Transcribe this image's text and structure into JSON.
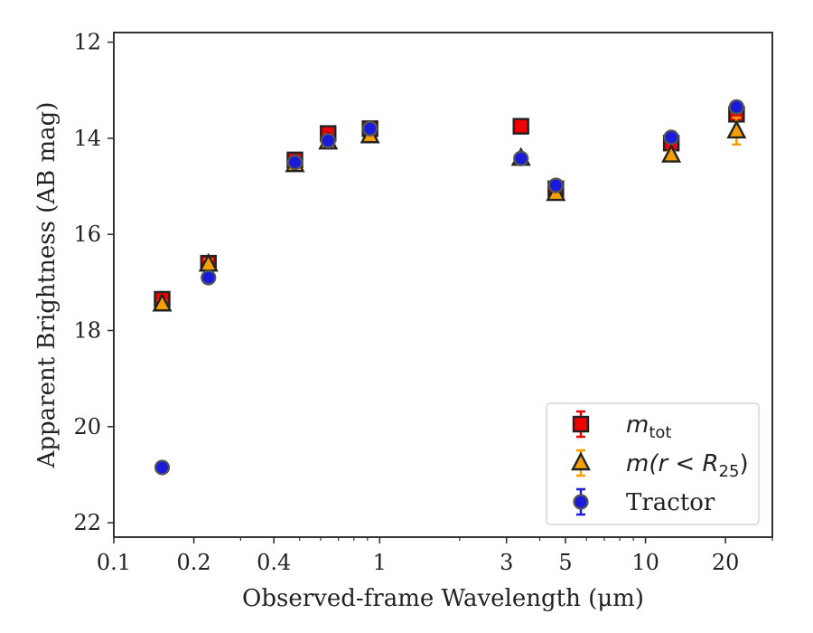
{
  "chart_data": {
    "type": "scatter",
    "title": "",
    "xlabel": "Observed-frame Wavelength (μm)",
    "ylabel": "Apparent Brightness (AB mag)",
    "xscale": "log",
    "xlim": [
      0.1,
      30
    ],
    "ylim": [
      22.3,
      11.8
    ],
    "y_inverted": true,
    "grid": false,
    "legend_position": "lower-right",
    "x_ticks": [
      {
        "value": 0.1,
        "label": "0.1"
      },
      {
        "value": 0.2,
        "label": "0.2"
      },
      {
        "value": 0.4,
        "label": "0.4"
      },
      {
        "value": 1,
        "label": "1"
      },
      {
        "value": 3,
        "label": "3"
      },
      {
        "value": 5,
        "label": "5"
      },
      {
        "value": 10,
        "label": "10"
      },
      {
        "value": 20,
        "label": "20"
      }
    ],
    "y_ticks": [
      {
        "value": 12,
        "label": "12"
      },
      {
        "value": 14,
        "label": "14"
      },
      {
        "value": 16,
        "label": "16"
      },
      {
        "value": 18,
        "label": "18"
      },
      {
        "value": 20,
        "label": "20"
      },
      {
        "value": 22,
        "label": "22"
      }
    ],
    "series": [
      {
        "legend_base": "m",
        "legend_sub": "tot",
        "legend_suffix": "",
        "marker": "square",
        "face": "#ee0000",
        "edge": "#222222",
        "errcolor": "#ee0000",
        "points": [
          {
            "x": 0.152,
            "y": 17.35,
            "err": 0.08
          },
          {
            "x": 0.227,
            "y": 16.6,
            "err": 0.1
          },
          {
            "x": 0.48,
            "y": 14.45,
            "err": 0.05
          },
          {
            "x": 0.64,
            "y": 13.9,
            "err": 0.05
          },
          {
            "x": 0.92,
            "y": 13.8,
            "err": 0.05
          },
          {
            "x": 3.4,
            "y": 13.75,
            "err": 0.04
          },
          {
            "x": 4.6,
            "y": 15.05,
            "err": 0.05
          },
          {
            "x": 12.5,
            "y": 14.1,
            "err": 0.07
          },
          {
            "x": 22.0,
            "y": 13.5,
            "err": 0.12
          }
        ]
      },
      {
        "legend_base": "m(r < R",
        "legend_sub": "25",
        "legend_suffix": ")",
        "marker": "triangle",
        "face": "#f5a000",
        "edge": "#222222",
        "errcolor": "#f5a000",
        "points": [
          {
            "x": 0.152,
            "y": 17.45,
            "err": 0.08
          },
          {
            "x": 0.227,
            "y": 16.62,
            "err": 0.1
          },
          {
            "x": 0.48,
            "y": 14.55,
            "err": 0.05
          },
          {
            "x": 0.64,
            "y": 14.08,
            "err": 0.05
          },
          {
            "x": 0.92,
            "y": 13.95,
            "err": 0.05
          },
          {
            "x": 3.4,
            "y": 14.42,
            "err": 0.05
          },
          {
            "x": 4.6,
            "y": 15.15,
            "err": 0.06
          },
          {
            "x": 12.5,
            "y": 14.35,
            "err": 0.08
          },
          {
            "x": 22.0,
            "y": 13.85,
            "err": 0.28
          }
        ]
      },
      {
        "legend_base": "Tractor",
        "legend_sub": "",
        "legend_suffix": "",
        "marker": "circle",
        "face": "#1a1adb",
        "edge": "#555555",
        "errcolor": "#1a1adb",
        "points": [
          {
            "x": 0.152,
            "y": 20.85,
            "err": 0.08
          },
          {
            "x": 0.227,
            "y": 16.9,
            "err": 0.08
          },
          {
            "x": 0.48,
            "y": 14.5,
            "err": 0.04
          },
          {
            "x": 0.64,
            "y": 14.05,
            "err": 0.04
          },
          {
            "x": 0.92,
            "y": 13.8,
            "err": 0.04
          },
          {
            "x": 3.4,
            "y": 14.42,
            "err": 0.04
          },
          {
            "x": 4.6,
            "y": 14.98,
            "err": 0.05
          },
          {
            "x": 12.5,
            "y": 13.98,
            "err": 0.06
          },
          {
            "x": 22.0,
            "y": 13.35,
            "err": 0.08
          }
        ]
      }
    ]
  }
}
